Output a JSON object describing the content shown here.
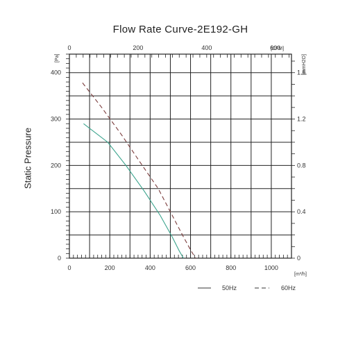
{
  "chart_data": {
    "type": "line",
    "title": "Flow Rate Curve-2E192-GH",
    "ylabel": "Static Pressure",
    "x_bottom": {
      "unit": "[m³/h]",
      "range": [
        0,
        1100
      ],
      "ticks": [
        0,
        200,
        400,
        600,
        800,
        1000
      ]
    },
    "x_top": {
      "unit": "[CFM]",
      "range": [
        0,
        647
      ],
      "ticks": [
        0,
        200,
        400,
        600
      ]
    },
    "y_left": {
      "unit": "[Pa]",
      "range": [
        0,
        440
      ],
      "ticks": [
        0,
        100,
        200,
        300,
        400
      ]
    },
    "y_right": {
      "unit": "[mmH2O]",
      "ticks": [
        0,
        0.4,
        0.8,
        1.2,
        1.6
      ],
      "tick_labels": [
        "0",
        "0.4",
        "0.8",
        "1.2",
        "1.6"
      ]
    },
    "grid": true,
    "legend_position": "bottom-right",
    "series": [
      {
        "name": "50Hz",
        "style": "solid",
        "color": "#3aa38c",
        "x": [
          70,
          190,
          280,
          370,
          450,
          510,
          545,
          565
        ],
        "y": [
          290,
          250,
          200,
          145,
          92,
          45,
          15,
          0
        ]
      },
      {
        "name": "60Hz",
        "style": "dashed",
        "color": "#7a3b3b",
        "x": [
          65,
          160,
          260,
          350,
          440,
          500,
          560,
          600,
          625
        ],
        "y": [
          378,
          325,
          265,
          207,
          150,
          100,
          50,
          18,
          0
        ]
      }
    ]
  }
}
